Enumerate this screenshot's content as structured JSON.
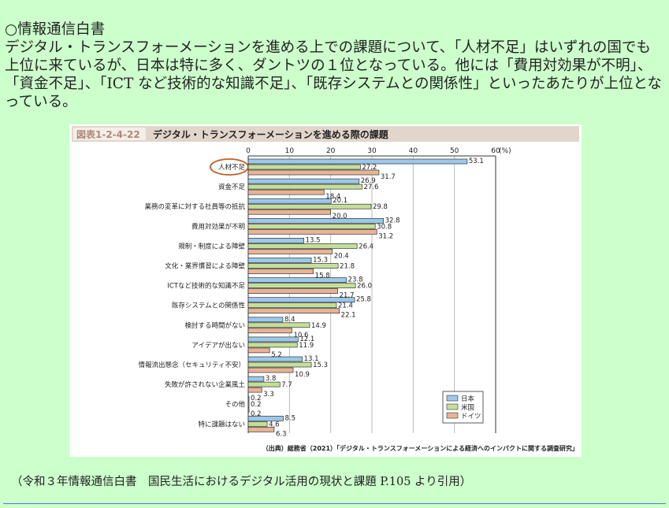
{
  "intro": {
    "heading": "○情報通信白書",
    "body": "デジタル・トランスフォーメーションを進める上での課題について、「人材不足」はいずれの国でも上位に来ているが、日本は特に多く、ダントツの１位となっている。他には「費用対効果が不明」、「資金不足」、「ICT など技術的な知識不足」、「既存システムとの関係性」といったあたりが上位となっている。"
  },
  "footer": "（令和３年情報通信白書　国民生活におけるデジタル活用の現状と課題 P.105 より引用）",
  "chart_data": {
    "type": "bar",
    "orientation": "horizontal",
    "figure_number": "図表1-2-4-22",
    "title": "デジタル・トランスフォーメーションを進める際の課題",
    "xlim": [
      0,
      60
    ],
    "ticks": [
      "0",
      "10",
      "20",
      "30",
      "40",
      "50",
      "60"
    ],
    "unit": "(%)",
    "highlighted_category": "人材不足",
    "categories": [
      "人材不足",
      "資金不足",
      "業務の変革に対する社員等の抵抗",
      "費用対効果が不明",
      "規制・制度による障壁",
      "文化・業界慣習による障壁",
      "ICTなど技術的な知識不足",
      "既存システムとの関係性",
      "検討する時間がない",
      "アイデアが出ない",
      "情報流出懸念（セキュリティ不安）",
      "失敗が許されない企業風土",
      "その他",
      "特に課題はない"
    ],
    "series": [
      {
        "name": "日本",
        "color": "#9cc8ec",
        "values": [
          53.1,
          26.9,
          20.1,
          32.8,
          13.5,
          15.3,
          23.8,
          25.8,
          8.4,
          12.1,
          13.1,
          3.8,
          0.2,
          8.5
        ]
      },
      {
        "name": "米国",
        "color": "#c4df9a",
        "values": [
          27.2,
          27.6,
          29.8,
          30.8,
          26.4,
          21.8,
          26.0,
          21.4,
          14.9,
          11.9,
          15.3,
          7.7,
          0.2,
          4.6
        ]
      },
      {
        "name": "ドイツ",
        "color": "#e8b396",
        "values": [
          31.7,
          18.4,
          20.0,
          31.2,
          20.4,
          15.8,
          21.7,
          22.1,
          10.6,
          5.2,
          10.9,
          3.3,
          0.2,
          6.3
        ]
      }
    ],
    "legend": "bottom-right",
    "grid": true,
    "source": "（出典）総務省（2021）「デジタル・トランスフォーメーションによる経済へのインパクトに関する調査研究」"
  }
}
